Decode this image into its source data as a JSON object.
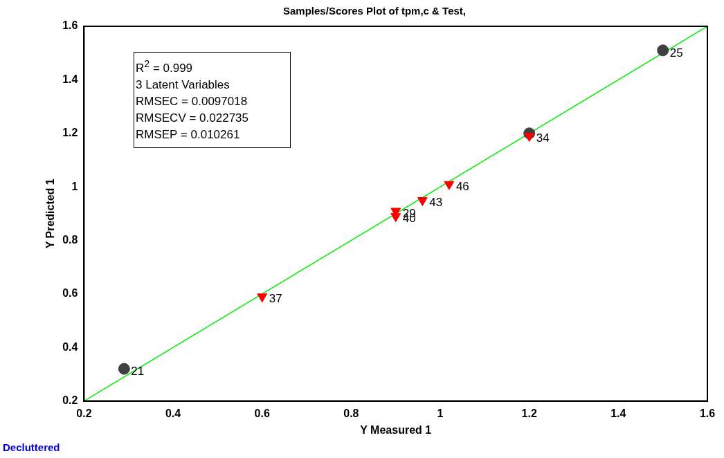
{
  "chart_data": {
    "type": "scatter",
    "title": "Samples/Scores Plot of tpm,c & Test,",
    "xlabel": "Y Measured 1",
    "ylabel": "Y Predicted 1",
    "xlim": [
      0.2,
      1.6
    ],
    "xticks": [
      0.2,
      0.4,
      0.6,
      0.8,
      1,
      1.2,
      1.4,
      1.6
    ],
    "ylim": [
      0.2,
      1.6
    ],
    "yticks": [
      0.2,
      0.4,
      0.6,
      0.8,
      1,
      1.2,
      1.4,
      1.6
    ],
    "grid": false,
    "legend": false,
    "series": [
      {
        "type": "line",
        "color": "#00ee00",
        "x": [
          0.2,
          1.6
        ],
        "values": [
          0.2,
          1.6
        ],
        "marker": "none"
      },
      {
        "color": "#404040",
        "x": [
          0.29,
          1.5,
          1.2
        ],
        "values": [
          0.32,
          1.51,
          1.2
        ],
        "marker": "circle"
      },
      {
        "color": "#ff0000",
        "x": [
          0.6,
          0.9,
          0.9,
          0.96,
          1.02,
          1.2
        ],
        "values": [
          0.59,
          0.91,
          0.89,
          0.95,
          1.01,
          1.19
        ],
        "marker": "triangle"
      }
    ],
    "annotations": [
      {
        "text": "21",
        "x": 0.29,
        "y": 0.32
      },
      {
        "text": "25",
        "x": 1.5,
        "y": 1.51
      },
      {
        "text": "34",
        "x": 1.2,
        "y": 1.19
      },
      {
        "text": "37",
        "x": 0.6,
        "y": 0.59
      },
      {
        "text": "29",
        "x": 0.9,
        "y": 0.91
      },
      {
        "text": "40",
        "x": 0.9,
        "y": 0.89
      },
      {
        "text": "43",
        "x": 0.96,
        "y": 0.95
      },
      {
        "text": "46",
        "x": 1.02,
        "y": 1.01
      },
      "R$^{2}$ = 0.999",
      "3 Latent Variables",
      "RMSEC = 0.0097018",
      "RMSECV = 0.022735",
      "RMSEP = 0.010261",
      "Decluttered"
    ]
  }
}
